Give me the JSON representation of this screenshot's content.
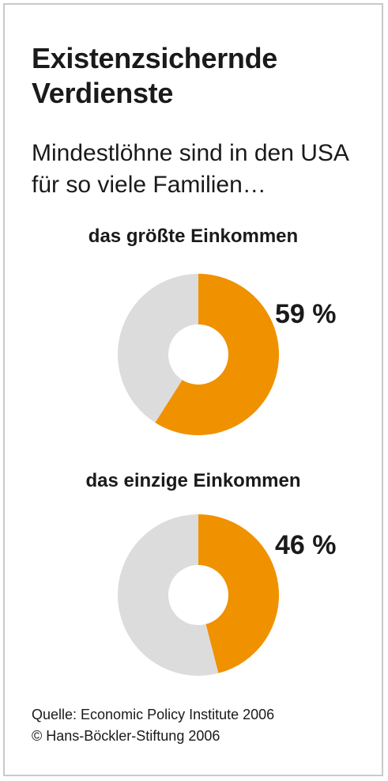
{
  "title": "Existenzsichernde Verdienste",
  "subtitle": "Mindestlöhne sind in den USA für so viele Familien…",
  "colors": {
    "highlight": "#f09100",
    "remainder": "#dcdcdc",
    "hole": "#ffffff"
  },
  "chart_data": [
    {
      "type": "pie",
      "title": "das größte Einkommen",
      "values": [
        59,
        41
      ],
      "value_label": "59 %"
    },
    {
      "type": "pie",
      "title": "das einzige Einkommen",
      "values": [
        46,
        54
      ],
      "value_label": "46 %"
    }
  ],
  "source": {
    "line1": "Quelle: Economic Policy Institute 2006",
    "line2": "© Hans-Böckler-Stiftung 2006"
  }
}
